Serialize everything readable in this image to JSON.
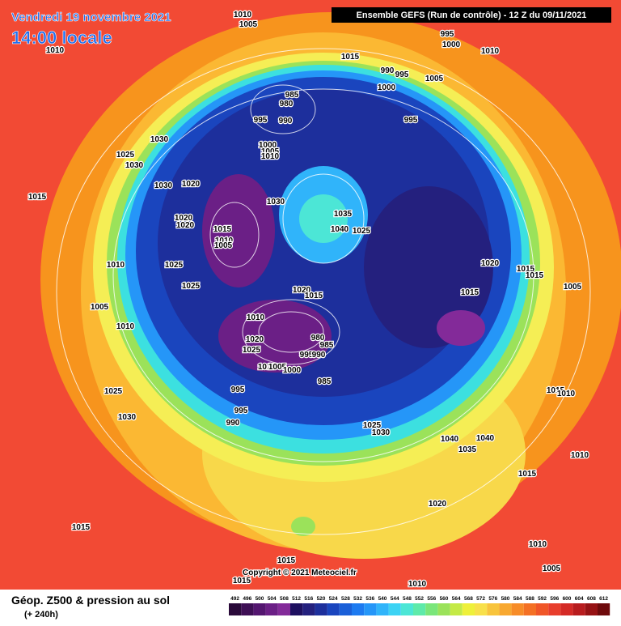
{
  "header": {
    "date": "Vendredi 19 novembre 2021",
    "time": "14:00 locale",
    "run": "Ensemble GEFS (Run de contrôle)  -  12 Z du 09/11/2021"
  },
  "footer": {
    "title": "Géop. Z500 & pression au sol",
    "lead": "(+ 240h)",
    "copyright": "Copyright © 2021 Meteociel.fr"
  },
  "colorbar": {
    "values": [
      492,
      496,
      500,
      504,
      508,
      512,
      516,
      520,
      524,
      528,
      532,
      536,
      540,
      544,
      548,
      552,
      556,
      560,
      564,
      568,
      572,
      576,
      580,
      584,
      588,
      592,
      596,
      600,
      604,
      608,
      612
    ],
    "colors": [
      "#2a0a3a",
      "#3e0f55",
      "#541670",
      "#6b1f86",
      "#832a99",
      "#1e1060",
      "#24207e",
      "#1d2f9c",
      "#1a45be",
      "#1a5fd8",
      "#1d7af0",
      "#2596f8",
      "#30b4fa",
      "#3cd3f4",
      "#4ce6d6",
      "#5eeaaa",
      "#7ae67a",
      "#9be25a",
      "#c4ea46",
      "#eef03a",
      "#f8e04a",
      "#f8c43c",
      "#f8a830",
      "#f78c28",
      "#f47024",
      "#f05628",
      "#e83e2c",
      "#d42a26",
      "#b81c1e",
      "#961214",
      "#6e0a0c"
    ]
  },
  "isobar_labels": [
    "1010",
    "1005",
    "1010",
    "1015",
    "995",
    "1000",
    "1010",
    "990",
    "995",
    "1000",
    "1005",
    "985",
    "980",
    "995",
    "990",
    "995",
    "1030",
    "1000",
    "1005",
    "1010",
    "1025",
    "1030",
    "1030",
    "1020",
    "1015",
    "1030",
    "1035",
    "1040",
    "1025",
    "1020",
    "1020",
    "1015",
    "1010",
    "1005",
    "1010",
    "1025",
    "1020",
    "1015",
    "1015",
    "1025",
    "1005",
    "1020",
    "1015",
    "1015",
    "1005",
    "1010",
    "1010",
    "980",
    "985",
    "1020",
    "1025",
    "995",
    "990",
    "1010",
    "1005",
    "1000",
    "985",
    "995",
    "1025",
    "1015",
    "1010",
    "995",
    "1030",
    "990",
    "1025",
    "1030",
    "1040",
    "1040",
    "1035",
    "1015",
    "1010",
    "1020",
    "1015",
    "1010",
    "1015",
    "1005",
    "1015",
    "1010"
  ]
}
